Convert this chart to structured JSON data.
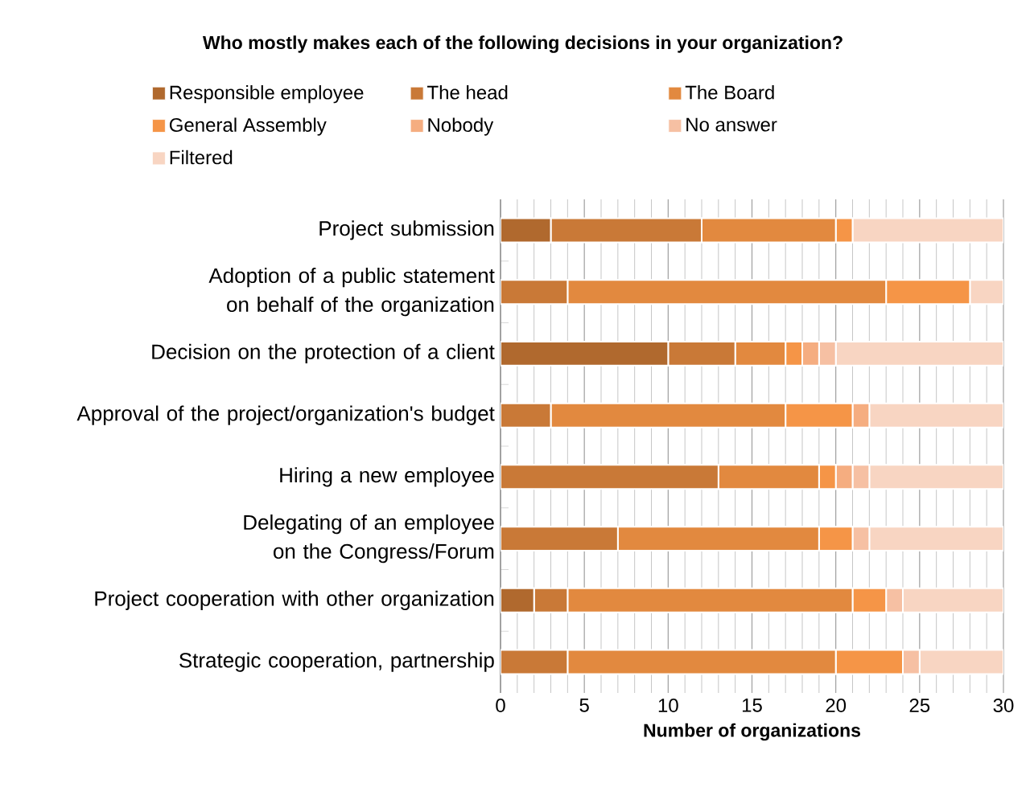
{
  "chart_data": {
    "type": "bar",
    "orientation": "horizontal",
    "stacked": true,
    "title": "Who mostly makes each of the following decisions in your organization?",
    "xlabel": "Number of organizations",
    "categories": [
      "Project submission",
      "Adoption of a public statement on behalf of the organization",
      "Decision on the protection of a client",
      "Approval of the project/organization's budget",
      "Hiring a new employee",
      "Delegating of an employee on the Congress/Forum",
      "Project cooperation with other organization",
      "Strategic cooperation, partnership"
    ],
    "series": [
      {
        "name": "Responsible employee",
        "color": "#b0692e",
        "values": [
          3,
          0,
          10,
          0,
          0,
          0,
          2,
          0
        ]
      },
      {
        "name": "The head",
        "color": "#c97937",
        "values": [
          9,
          4,
          4,
          3,
          13,
          7,
          2,
          4
        ]
      },
      {
        "name": "The Board",
        "color": "#e2893f",
        "values": [
          8,
          19,
          3,
          14,
          6,
          12,
          17,
          16
        ]
      },
      {
        "name": "General Assembly",
        "color": "#f59547",
        "values": [
          1,
          5,
          1,
          4,
          1,
          2,
          2,
          4
        ]
      },
      {
        "name": "Nobody",
        "color": "#f5ad80",
        "values": [
          0,
          0,
          1,
          1,
          1,
          0,
          0,
          0
        ]
      },
      {
        "name": "No answer",
        "color": "#f6c0a3",
        "values": [
          0,
          0,
          1,
          0,
          1,
          1,
          1,
          1
        ]
      },
      {
        "name": "Filtered",
        "color": "#f8d5c2",
        "values": [
          9,
          2,
          10,
          8,
          8,
          8,
          6,
          5
        ]
      }
    ],
    "xlim": [
      0,
      30
    ],
    "xticks": [
      0,
      5,
      10,
      15,
      20,
      25,
      30
    ],
    "grid": "x",
    "legend": "top"
  }
}
